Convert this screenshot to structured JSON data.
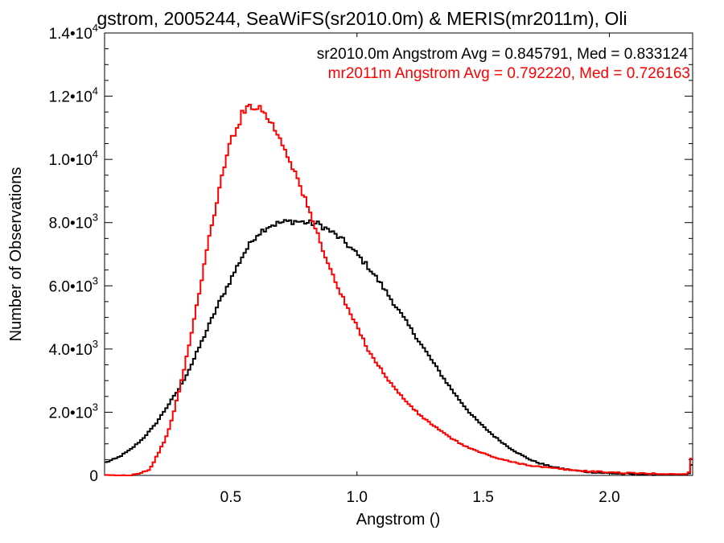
{
  "chart_data": {
    "type": "line",
    "title": "gstrom, 2005244, SeaWiFS(sr2010.0m) & MERIS(mr2011m), Oli",
    "xlabel": "Angstrom ()",
    "ylabel": "Number of Observations",
    "xlim": [
      0.0,
      2.33
    ],
    "ylim": [
      0,
      14000
    ],
    "x_ticks": [
      {
        "value": 0.5,
        "label": "0.5"
      },
      {
        "value": 1.0,
        "label": "1.0"
      },
      {
        "value": 1.5,
        "label": "1.5"
      },
      {
        "value": 2.0,
        "label": "2.0"
      }
    ],
    "y_ticks": [
      {
        "value": 0,
        "mant": "0",
        "exp": ""
      },
      {
        "value": 2000,
        "mant": "2.0•10",
        "exp": "3"
      },
      {
        "value": 4000,
        "mant": "4.0•10",
        "exp": "3"
      },
      {
        "value": 6000,
        "mant": "6.0•10",
        "exp": "3"
      },
      {
        "value": 8000,
        "mant": "8.0•10",
        "exp": "3"
      },
      {
        "value": 10000,
        "mant": "1.0•10",
        "exp": "4"
      },
      {
        "value": 12000,
        "mant": "1.2•10",
        "exp": "4"
      },
      {
        "value": 14000,
        "mant": "1.4•10",
        "exp": "4"
      }
    ],
    "annotations": [
      {
        "text": "sr2010.0m Angstrom Avg = 0.845791, Med = 0.833124",
        "color": "#000000"
      },
      {
        "text": "mr2011m Angstrom Avg = 0.792220, Med = 0.726163",
        "color": "#ff0000"
      }
    ],
    "series": [
      {
        "color": "#000000",
        "x": [
          0.0,
          0.05,
          0.1,
          0.15,
          0.2,
          0.25,
          0.3,
          0.35,
          0.4,
          0.45,
          0.5,
          0.55,
          0.6,
          0.65,
          0.7,
          0.75,
          0.8,
          0.85,
          0.9,
          0.95,
          1.0,
          1.05,
          1.1,
          1.15,
          1.2,
          1.25,
          1.3,
          1.35,
          1.4,
          1.45,
          1.5,
          1.55,
          1.6,
          1.65,
          1.7,
          1.75,
          1.8,
          1.85,
          1.9,
          1.95,
          2.0,
          2.05,
          2.1,
          2.15,
          2.2,
          2.25,
          2.3,
          2.32,
          2.33
        ],
        "values": [
          400,
          550,
          800,
          1150,
          1600,
          2200,
          2800,
          3600,
          4500,
          5400,
          6200,
          7000,
          7600,
          7900,
          8000,
          8050,
          8000,
          7950,
          7700,
          7400,
          7000,
          6550,
          6000,
          5400,
          4800,
          4200,
          3600,
          3000,
          2450,
          1950,
          1550,
          1200,
          900,
          650,
          450,
          320,
          230,
          170,
          120,
          90,
          70,
          50,
          40,
          30,
          25,
          20,
          25,
          60,
          600
        ]
      },
      {
        "color": "#ff0000",
        "x": [
          0.0,
          0.1,
          0.15,
          0.18,
          0.2,
          0.25,
          0.3,
          0.35,
          0.4,
          0.45,
          0.5,
          0.55,
          0.58,
          0.62,
          0.65,
          0.7,
          0.75,
          0.8,
          0.85,
          0.9,
          0.95,
          1.0,
          1.05,
          1.1,
          1.15,
          1.2,
          1.25,
          1.3,
          1.35,
          1.4,
          1.45,
          1.5,
          1.55,
          1.6,
          1.65,
          1.7,
          1.75,
          1.8,
          1.85,
          1.9,
          1.95,
          2.0,
          2.05,
          2.1,
          2.15,
          2.2,
          2.25,
          2.3,
          2.32,
          2.33
        ],
        "values": [
          0,
          0,
          100,
          200,
          500,
          1300,
          2800,
          4700,
          6900,
          8900,
          10600,
          11500,
          11750,
          11600,
          11300,
          10600,
          9700,
          8600,
          7500,
          6400,
          5500,
          4700,
          3900,
          3300,
          2750,
          2300,
          1900,
          1600,
          1300,
          1050,
          850,
          700,
          560,
          450,
          370,
          300,
          250,
          210,
          170,
          140,
          120,
          100,
          80,
          70,
          60,
          50,
          40,
          40,
          100,
          1000
        ]
      }
    ]
  }
}
